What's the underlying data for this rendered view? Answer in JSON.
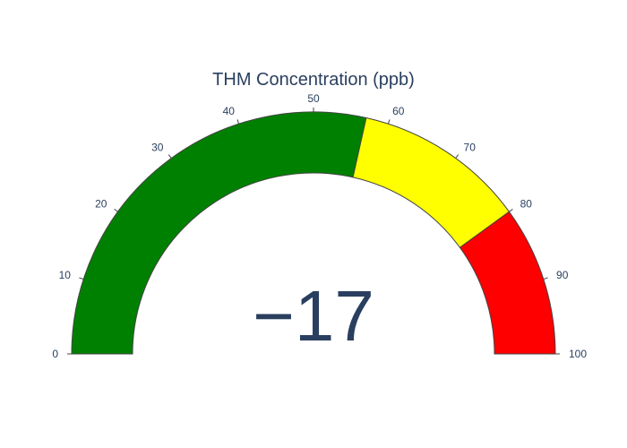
{
  "chart_data": {
    "type": "gauge",
    "title": "THM Concentration (ppb)",
    "value": -17,
    "value_display": "−17",
    "range": [
      0,
      100
    ],
    "tick_values": [
      0,
      10,
      20,
      30,
      40,
      50,
      60,
      70,
      80,
      90,
      100
    ],
    "tick_labels": [
      "0",
      "10",
      "20",
      "30",
      "40",
      "50",
      "60",
      "70",
      "80",
      "90",
      "100"
    ],
    "bar_color": "#ff0000",
    "steps": [
      {
        "range": [
          0,
          57
        ],
        "color": "#008000"
      },
      {
        "range": [
          57,
          80
        ],
        "color": "#ffff00"
      },
      {
        "range": [
          80,
          100
        ],
        "color": "#ff0000"
      }
    ],
    "border_color": "#444444",
    "text_color": "#2a3f5f"
  }
}
